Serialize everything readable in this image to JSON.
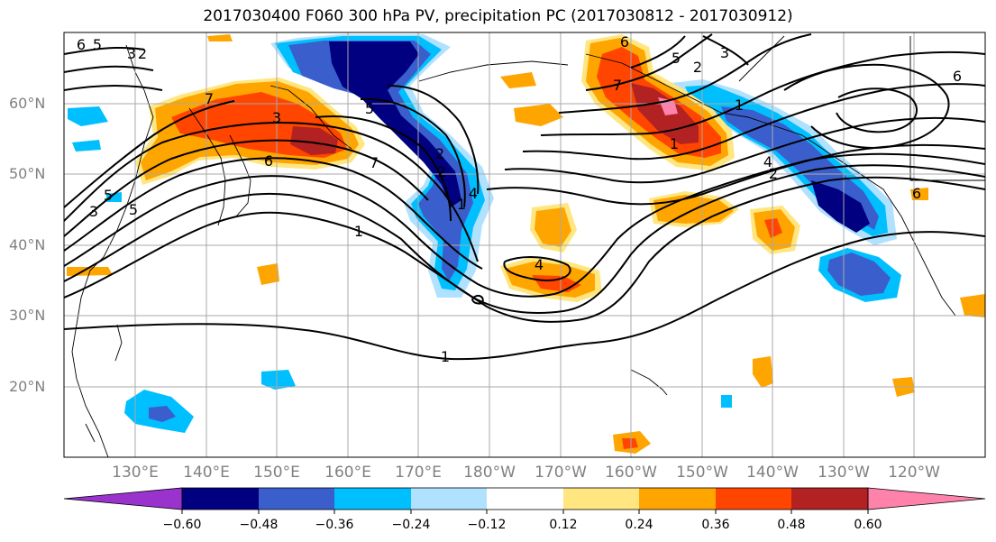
{
  "title": "2017030400 F060 300 hPa PV, precipitation PC (2017030812 - 2017030912)",
  "lat_labels": [
    "60°N",
    "50°N",
    "40°N",
    "30°N",
    "20°N"
  ],
  "lon_labels": [
    "130°E",
    "140°E",
    "150°E",
    "160°E",
    "170°E",
    "180°W",
    "170°W",
    "160°W",
    "150°W",
    "140°W",
    "130°W",
    "120°W"
  ],
  "contour_labels": [
    "6",
    "5",
    "3",
    "2",
    "5",
    "7",
    "6",
    "7",
    "5",
    "3",
    "5",
    "1",
    "6",
    "7",
    "3",
    "2",
    "1",
    "4",
    "2",
    "1",
    "3",
    "5",
    "2",
    "6",
    "4",
    "1",
    "2",
    "1",
    "4",
    "6"
  ],
  "colorbar": {
    "colors": [
      "#9a32cd",
      "#000080",
      "#3a5fcd",
      "#00bfff",
      "#b0e2ff",
      "#ffffff",
      "#ffe680",
      "#ffa500",
      "#ff4500",
      "#b22222",
      "#ff82ab"
    ],
    "tick_labels": [
      "−0.60",
      "−0.48",
      "−0.36",
      "−0.24",
      "−0.12",
      "0.12",
      "0.24",
      "0.36",
      "0.48",
      "0.60"
    ]
  }
}
